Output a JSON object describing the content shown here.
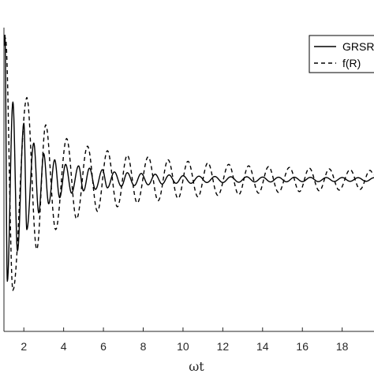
{
  "chart_data": {
    "type": "line",
    "title": "",
    "xlabel": "ωt",
    "ylabel": "",
    "xlim": [
      1.0,
      19.6
    ],
    "ylim": [
      -1.0,
      1.0
    ],
    "xticks": [
      2,
      4,
      6,
      8,
      10,
      12,
      14,
      16,
      18
    ],
    "xtick_labels": [
      "2",
      "4",
      "6",
      "8",
      "10",
      "12",
      "14",
      "16",
      "18"
    ],
    "grid": false,
    "legend": "top-right",
    "series": [
      {
        "name": "GRSR",
        "style": "solid",
        "color": "#000000",
        "start": [
          1.0,
          0.88
        ],
        "peaks": [
          [
            1.05,
            0.95
          ],
          [
            1.17,
            -0.67
          ],
          [
            1.45,
            0.51
          ],
          [
            1.68,
            -0.47
          ],
          [
            2.0,
            0.37
          ],
          [
            2.15,
            -0.33
          ],
          [
            2.5,
            0.24
          ],
          [
            2.75,
            -0.22
          ],
          [
            3.0,
            0.17
          ],
          [
            3.25,
            -0.16
          ],
          [
            3.55,
            0.13
          ],
          [
            3.8,
            -0.12
          ],
          [
            4.1,
            0.1
          ],
          [
            4.4,
            -0.09
          ],
          [
            4.75,
            0.09
          ],
          [
            5.0,
            -0.075
          ],
          [
            5.3,
            0.075
          ],
          [
            5.6,
            -0.065
          ],
          [
            5.95,
            0.065
          ],
          [
            6.2,
            -0.055
          ],
          [
            6.55,
            0.05
          ],
          [
            6.9,
            -0.045
          ],
          [
            7.2,
            0.045
          ],
          [
            7.55,
            -0.04
          ],
          [
            7.9,
            0.04
          ],
          [
            8.25,
            -0.035
          ],
          [
            8.6,
            0.035
          ],
          [
            8.95,
            -0.03
          ],
          [
            9.3,
            0.03
          ],
          [
            9.65,
            -0.025
          ],
          [
            10.0,
            0.025
          ],
          [
            10.4,
            -0.025
          ],
          [
            10.8,
            0.022
          ],
          [
            11.2,
            -0.02
          ],
          [
            11.6,
            0.02
          ],
          [
            12.0,
            -0.02
          ],
          [
            12.4,
            0.018
          ],
          [
            12.8,
            -0.018
          ],
          [
            13.2,
            0.018
          ],
          [
            13.6,
            -0.016
          ],
          [
            14.0,
            0.016
          ],
          [
            14.4,
            -0.016
          ],
          [
            14.8,
            0.015
          ],
          [
            15.2,
            -0.015
          ],
          [
            15.6,
            0.015
          ],
          [
            16.0,
            -0.014
          ],
          [
            16.4,
            0.014
          ],
          [
            16.8,
            -0.014
          ],
          [
            17.2,
            0.013
          ],
          [
            17.6,
            -0.013
          ],
          [
            18.0,
            0.013
          ],
          [
            18.4,
            -0.012
          ],
          [
            18.8,
            0.012
          ],
          [
            19.2,
            -0.012
          ],
          [
            19.6,
            0.012
          ]
        ]
      },
      {
        "name": "f(R)",
        "style": "dashed",
        "color": "#000000",
        "start": [
          1.0,
          0.95
        ],
        "peaks": [
          [
            1.08,
            0.93
          ],
          [
            1.45,
            -0.73
          ],
          [
            2.15,
            0.54
          ],
          [
            2.65,
            -0.46
          ],
          [
            3.1,
            0.36
          ],
          [
            3.6,
            -0.33
          ],
          [
            4.15,
            0.27
          ],
          [
            4.65,
            -0.26
          ],
          [
            5.2,
            0.22
          ],
          [
            5.7,
            -0.21
          ],
          [
            6.2,
            0.19
          ],
          [
            6.7,
            -0.18
          ],
          [
            7.2,
            0.16
          ],
          [
            7.7,
            -0.155
          ],
          [
            8.25,
            0.15
          ],
          [
            8.75,
            -0.14
          ],
          [
            9.25,
            0.13
          ],
          [
            9.75,
            -0.125
          ],
          [
            10.25,
            0.12
          ],
          [
            10.75,
            -0.115
          ],
          [
            11.25,
            0.11
          ],
          [
            11.75,
            -0.105
          ],
          [
            12.3,
            0.1
          ],
          [
            12.8,
            -0.1
          ],
          [
            13.3,
            0.09
          ],
          [
            13.8,
            -0.09
          ],
          [
            14.3,
            0.085
          ],
          [
            14.8,
            -0.085
          ],
          [
            15.35,
            0.08
          ],
          [
            15.85,
            -0.08
          ],
          [
            16.35,
            0.075
          ],
          [
            16.85,
            -0.075
          ],
          [
            17.35,
            0.07
          ],
          [
            17.85,
            -0.07
          ],
          [
            18.4,
            0.065
          ],
          [
            18.9,
            -0.065
          ],
          [
            19.4,
            0.06
          ],
          [
            19.6,
            0.03
          ]
        ]
      }
    ]
  }
}
